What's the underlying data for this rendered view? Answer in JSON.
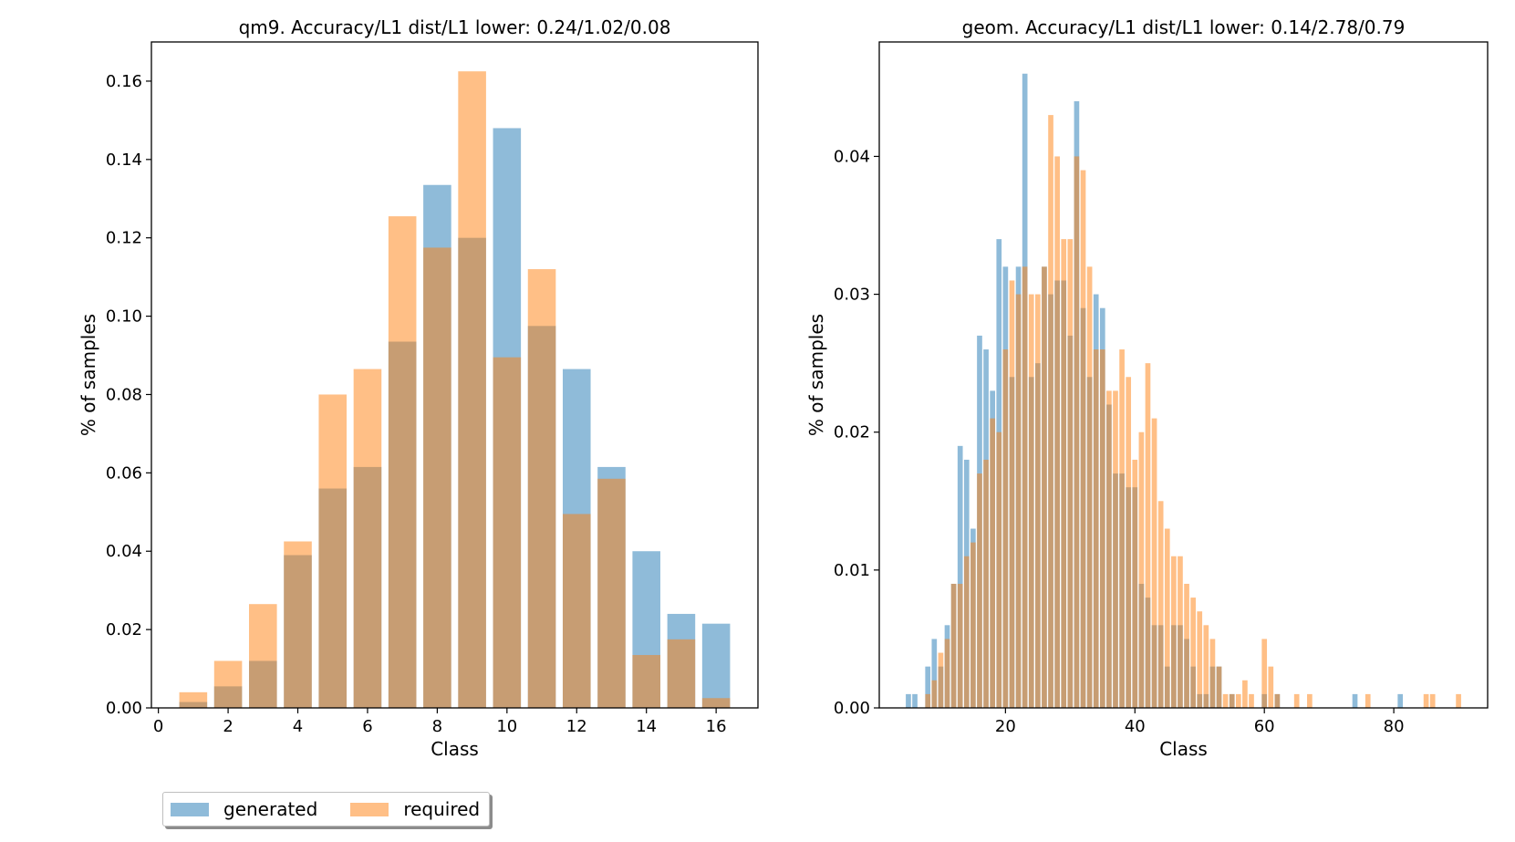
{
  "colors": {
    "generated": "#1f77b4",
    "required": "#ff7f0e",
    "bar_alpha": 0.5
  },
  "legend": {
    "items": [
      "generated",
      "required"
    ]
  },
  "chart_data": [
    {
      "type": "bar",
      "title": "qm9. Accuracy/L1 dist/L1 lower: 0.24/1.02/0.08",
      "xlabel": "Class",
      "ylabel": "% of samples",
      "xlim": [
        -0.2,
        17.2
      ],
      "ylim": [
        0,
        0.17
      ],
      "xticks": [
        0,
        2,
        4,
        6,
        8,
        10,
        12,
        14,
        16
      ],
      "yticks": [
        0.0,
        0.02,
        0.04,
        0.06,
        0.08,
        0.1,
        0.12,
        0.14,
        0.16
      ],
      "ytick_decimals": 2,
      "bar_width": 0.8,
      "categories": [
        1,
        2,
        3,
        4,
        5,
        6,
        7,
        8,
        9,
        10,
        11,
        12,
        13,
        14,
        15,
        16
      ],
      "series": [
        {
          "name": "generated",
          "values": [
            0.0015,
            0.0055,
            0.012,
            0.039,
            0.056,
            0.0615,
            0.0935,
            0.1335,
            0.12,
            0.148,
            0.0975,
            0.0865,
            0.0615,
            0.04,
            0.024,
            0.0215
          ]
        },
        {
          "name": "required",
          "values": [
            0.004,
            0.012,
            0.0265,
            0.0425,
            0.08,
            0.0865,
            0.1255,
            0.1175,
            0.1625,
            0.0895,
            0.112,
            0.0495,
            0.0585,
            0.0135,
            0.0175,
            0.0025
          ]
        }
      ]
    },
    {
      "type": "bar",
      "title": "geom. Accuracy/L1 dist/L1 lower: 0.14/2.78/0.79",
      "xlabel": "Class",
      "ylabel": "% of samples",
      "xlim": [
        0.5,
        94.5
      ],
      "ylim": [
        0,
        0.0483
      ],
      "xticks": [
        20,
        40,
        60,
        80
      ],
      "yticks": [
        0.0,
        0.01,
        0.02,
        0.03,
        0.04
      ],
      "ytick_decimals": 2,
      "bar_width": 0.8,
      "categories": [
        5,
        6,
        7,
        8,
        9,
        10,
        11,
        12,
        13,
        14,
        15,
        16,
        17,
        18,
        19,
        20,
        21,
        22,
        23,
        24,
        25,
        26,
        27,
        28,
        29,
        30,
        31,
        32,
        33,
        34,
        35,
        36,
        37,
        38,
        39,
        40,
        41,
        42,
        43,
        44,
        45,
        46,
        47,
        48,
        49,
        50,
        51,
        52,
        53,
        54,
        55,
        56,
        57,
        58,
        59,
        60,
        61,
        62,
        63,
        64,
        65,
        66,
        67,
        68,
        69,
        70,
        71,
        72,
        73,
        74,
        75,
        76,
        77,
        78,
        79,
        80,
        81,
        82,
        83,
        84,
        85,
        86,
        87,
        88,
        89,
        90
      ],
      "series": [
        {
          "name": "generated",
          "values": [
            0.001,
            0.001,
            0.0,
            0.003,
            0.005,
            0.003,
            0.006,
            0.009,
            0.019,
            0.018,
            0.013,
            0.027,
            0.026,
            0.023,
            0.034,
            0.032,
            0.024,
            0.032,
            0.046,
            0.024,
            0.025,
            0.032,
            0.03,
            0.031,
            0.031,
            0.027,
            0.044,
            0.029,
            0.024,
            0.03,
            0.029,
            0.022,
            0.017,
            0.017,
            0.016,
            0.016,
            0.009,
            0.008,
            0.006,
            0.006,
            0.003,
            0.006,
            0.006,
            0.005,
            0.003,
            0.001,
            0.001,
            0.003,
            0.003,
            0.0,
            0.001,
            0.0,
            0.0,
            0.0,
            0.0,
            0.001,
            0.0,
            0.001,
            0.0,
            0.0,
            0.0,
            0.0,
            0.0,
            0.0,
            0.0,
            0.0,
            0.0,
            0.0,
            0.0,
            0.001,
            0.0,
            0.0,
            0.0,
            0.0,
            0.0,
            0.0,
            0.001,
            0.0,
            0.0,
            0.0,
            0.0,
            0.0,
            0.0,
            0.0,
            0.0,
            0.0
          ]
        },
        {
          "name": "required",
          "values": [
            0.0,
            0.0,
            0.0,
            0.001,
            0.002,
            0.004,
            0.005,
            0.009,
            0.009,
            0.011,
            0.012,
            0.017,
            0.018,
            0.021,
            0.02,
            0.026,
            0.031,
            0.03,
            0.032,
            0.03,
            0.03,
            0.032,
            0.043,
            0.04,
            0.034,
            0.034,
            0.04,
            0.039,
            0.032,
            0.026,
            0.026,
            0.023,
            0.023,
            0.026,
            0.024,
            0.018,
            0.02,
            0.025,
            0.021,
            0.015,
            0.013,
            0.011,
            0.011,
            0.009,
            0.008,
            0.007,
            0.006,
            0.005,
            0.003,
            0.001,
            0.001,
            0.001,
            0.002,
            0.001,
            0.0,
            0.005,
            0.003,
            0.001,
            0.0,
            0.0,
            0.001,
            0.0,
            0.001,
            0.0,
            0.0,
            0.0,
            0.0,
            0.0,
            0.0,
            0.0,
            0.0,
            0.001,
            0.0,
            0.0,
            0.0,
            0.0,
            0.0,
            0.0,
            0.0,
            0.0,
            0.001,
            0.001,
            0.0,
            0.0,
            0.0,
            0.001
          ]
        }
      ]
    }
  ]
}
